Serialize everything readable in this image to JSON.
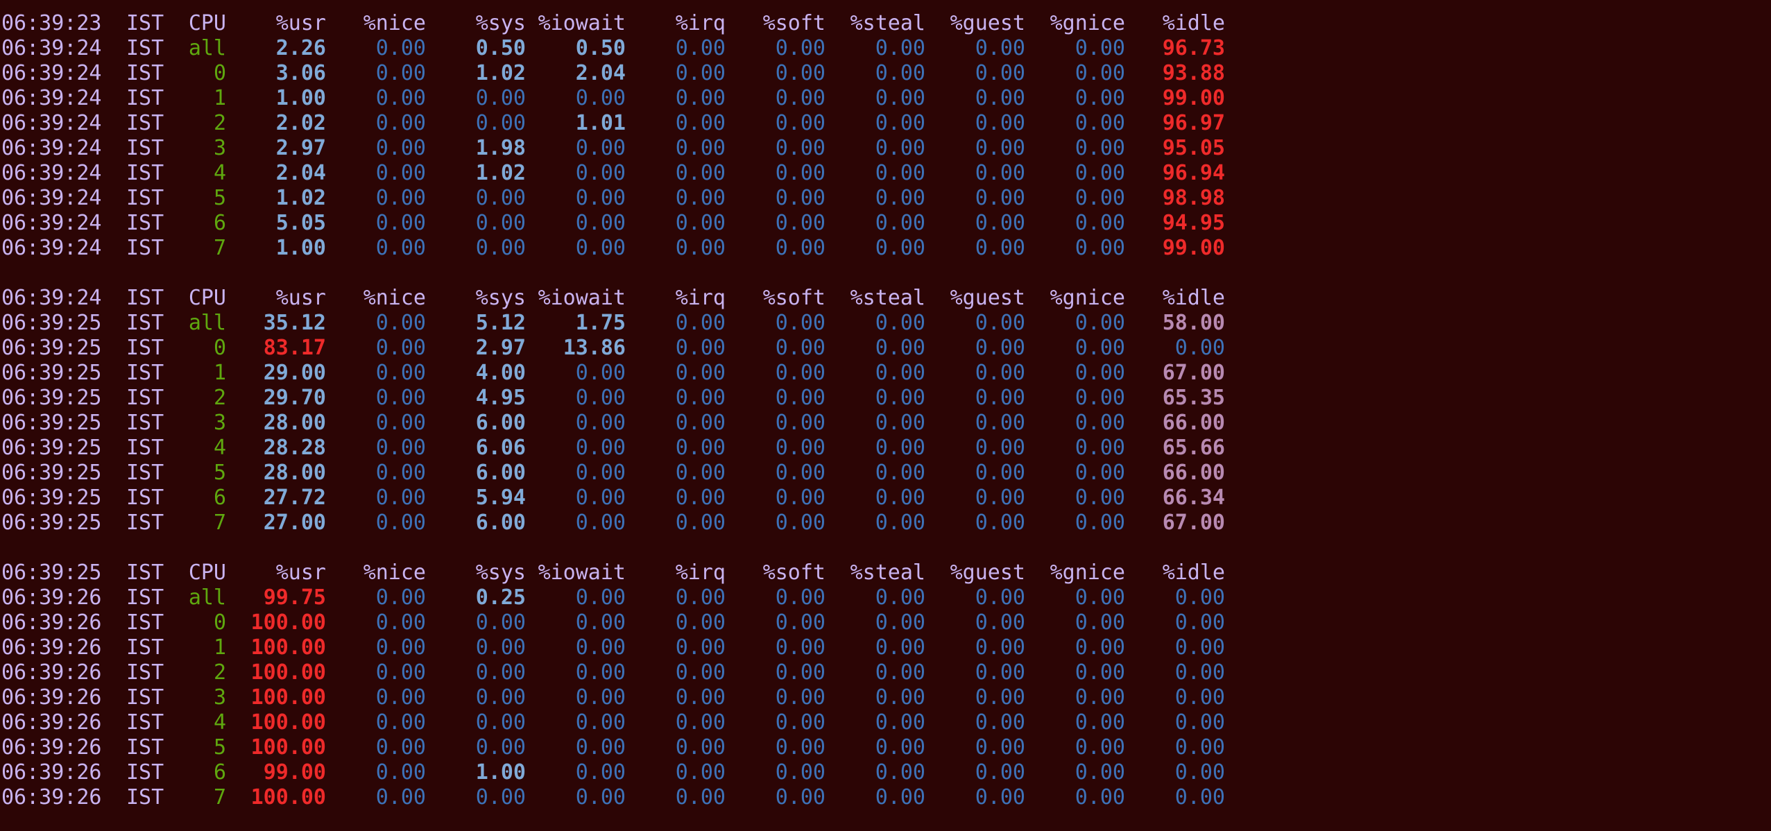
{
  "terminal": {
    "colors": {
      "background": "#2c0505",
      "label": "#c9b3f0",
      "cpu_id": "#5fa80f",
      "zero_value": "#3d72b8",
      "normal_value": "#80aad8",
      "medium_value": "#b88ab2",
      "high_value": "#ef2a2a"
    },
    "columns": [
      "CPU",
      "%usr",
      "%nice",
      "%sys",
      "%iowait",
      "%irq",
      "%soft",
      "%steal",
      "%guest",
      "%gnice",
      "%idle"
    ],
    "blocks": [
      {
        "header_time": "06:39:23",
        "header_tz": "IST",
        "rows": [
          {
            "time": "06:39:24",
            "tz": "IST",
            "cpu": "all",
            "values": [
              "2.26",
              "0.00",
              "0.50",
              "0.50",
              "0.00",
              "0.00",
              "0.00",
              "0.00",
              "0.00",
              "96.73"
            ]
          },
          {
            "time": "06:39:24",
            "tz": "IST",
            "cpu": "0",
            "values": [
              "3.06",
              "0.00",
              "1.02",
              "2.04",
              "0.00",
              "0.00",
              "0.00",
              "0.00",
              "0.00",
              "93.88"
            ]
          },
          {
            "time": "06:39:24",
            "tz": "IST",
            "cpu": "1",
            "values": [
              "1.00",
              "0.00",
              "0.00",
              "0.00",
              "0.00",
              "0.00",
              "0.00",
              "0.00",
              "0.00",
              "99.00"
            ]
          },
          {
            "time": "06:39:24",
            "tz": "IST",
            "cpu": "2",
            "values": [
              "2.02",
              "0.00",
              "0.00",
              "1.01",
              "0.00",
              "0.00",
              "0.00",
              "0.00",
              "0.00",
              "96.97"
            ]
          },
          {
            "time": "06:39:24",
            "tz": "IST",
            "cpu": "3",
            "values": [
              "2.97",
              "0.00",
              "1.98",
              "0.00",
              "0.00",
              "0.00",
              "0.00",
              "0.00",
              "0.00",
              "95.05"
            ]
          },
          {
            "time": "06:39:24",
            "tz": "IST",
            "cpu": "4",
            "values": [
              "2.04",
              "0.00",
              "1.02",
              "0.00",
              "0.00",
              "0.00",
              "0.00",
              "0.00",
              "0.00",
              "96.94"
            ]
          },
          {
            "time": "06:39:24",
            "tz": "IST",
            "cpu": "5",
            "values": [
              "1.02",
              "0.00",
              "0.00",
              "0.00",
              "0.00",
              "0.00",
              "0.00",
              "0.00",
              "0.00",
              "98.98"
            ]
          },
          {
            "time": "06:39:24",
            "tz": "IST",
            "cpu": "6",
            "values": [
              "5.05",
              "0.00",
              "0.00",
              "0.00",
              "0.00",
              "0.00",
              "0.00",
              "0.00",
              "0.00",
              "94.95"
            ]
          },
          {
            "time": "06:39:24",
            "tz": "IST",
            "cpu": "7",
            "values": [
              "1.00",
              "0.00",
              "0.00",
              "0.00",
              "0.00",
              "0.00",
              "0.00",
              "0.00",
              "0.00",
              "99.00"
            ]
          }
        ]
      },
      {
        "header_time": "06:39:24",
        "header_tz": "IST",
        "rows": [
          {
            "time": "06:39:25",
            "tz": "IST",
            "cpu": "all",
            "values": [
              "35.12",
              "0.00",
              "5.12",
              "1.75",
              "0.00",
              "0.00",
              "0.00",
              "0.00",
              "0.00",
              "58.00"
            ]
          },
          {
            "time": "06:39:25",
            "tz": "IST",
            "cpu": "0",
            "values": [
              "83.17",
              "0.00",
              "2.97",
              "13.86",
              "0.00",
              "0.00",
              "0.00",
              "0.00",
              "0.00",
              "0.00"
            ]
          },
          {
            "time": "06:39:25",
            "tz": "IST",
            "cpu": "1",
            "values": [
              "29.00",
              "0.00",
              "4.00",
              "0.00",
              "0.00",
              "0.00",
              "0.00",
              "0.00",
              "0.00",
              "67.00"
            ]
          },
          {
            "time": "06:39:25",
            "tz": "IST",
            "cpu": "2",
            "values": [
              "29.70",
              "0.00",
              "4.95",
              "0.00",
              "0.00",
              "0.00",
              "0.00",
              "0.00",
              "0.00",
              "65.35"
            ]
          },
          {
            "time": "06:39:25",
            "tz": "IST",
            "cpu": "3",
            "values": [
              "28.00",
              "0.00",
              "6.00",
              "0.00",
              "0.00",
              "0.00",
              "0.00",
              "0.00",
              "0.00",
              "66.00"
            ]
          },
          {
            "time": "06:39:25",
            "tz": "IST",
            "cpu": "4",
            "values": [
              "28.28",
              "0.00",
              "6.06",
              "0.00",
              "0.00",
              "0.00",
              "0.00",
              "0.00",
              "0.00",
              "65.66"
            ]
          },
          {
            "time": "06:39:25",
            "tz": "IST",
            "cpu": "5",
            "values": [
              "28.00",
              "0.00",
              "6.00",
              "0.00",
              "0.00",
              "0.00",
              "0.00",
              "0.00",
              "0.00",
              "66.00"
            ]
          },
          {
            "time": "06:39:25",
            "tz": "IST",
            "cpu": "6",
            "values": [
              "27.72",
              "0.00",
              "5.94",
              "0.00",
              "0.00",
              "0.00",
              "0.00",
              "0.00",
              "0.00",
              "66.34"
            ]
          },
          {
            "time": "06:39:25",
            "tz": "IST",
            "cpu": "7",
            "values": [
              "27.00",
              "0.00",
              "6.00",
              "0.00",
              "0.00",
              "0.00",
              "0.00",
              "0.00",
              "0.00",
              "67.00"
            ]
          }
        ]
      },
      {
        "header_time": "06:39:25",
        "header_tz": "IST",
        "rows": [
          {
            "time": "06:39:26",
            "tz": "IST",
            "cpu": "all",
            "values": [
              "99.75",
              "0.00",
              "0.25",
              "0.00",
              "0.00",
              "0.00",
              "0.00",
              "0.00",
              "0.00",
              "0.00"
            ]
          },
          {
            "time": "06:39:26",
            "tz": "IST",
            "cpu": "0",
            "values": [
              "100.00",
              "0.00",
              "0.00",
              "0.00",
              "0.00",
              "0.00",
              "0.00",
              "0.00",
              "0.00",
              "0.00"
            ]
          },
          {
            "time": "06:39:26",
            "tz": "IST",
            "cpu": "1",
            "values": [
              "100.00",
              "0.00",
              "0.00",
              "0.00",
              "0.00",
              "0.00",
              "0.00",
              "0.00",
              "0.00",
              "0.00"
            ]
          },
          {
            "time": "06:39:26",
            "tz": "IST",
            "cpu": "2",
            "values": [
              "100.00",
              "0.00",
              "0.00",
              "0.00",
              "0.00",
              "0.00",
              "0.00",
              "0.00",
              "0.00",
              "0.00"
            ]
          },
          {
            "time": "06:39:26",
            "tz": "IST",
            "cpu": "3",
            "values": [
              "100.00",
              "0.00",
              "0.00",
              "0.00",
              "0.00",
              "0.00",
              "0.00",
              "0.00",
              "0.00",
              "0.00"
            ]
          },
          {
            "time": "06:39:26",
            "tz": "IST",
            "cpu": "4",
            "values": [
              "100.00",
              "0.00",
              "0.00",
              "0.00",
              "0.00",
              "0.00",
              "0.00",
              "0.00",
              "0.00",
              "0.00"
            ]
          },
          {
            "time": "06:39:26",
            "tz": "IST",
            "cpu": "5",
            "values": [
              "100.00",
              "0.00",
              "0.00",
              "0.00",
              "0.00",
              "0.00",
              "0.00",
              "0.00",
              "0.00",
              "0.00"
            ]
          },
          {
            "time": "06:39:26",
            "tz": "IST",
            "cpu": "6",
            "values": [
              "99.00",
              "0.00",
              "1.00",
              "0.00",
              "0.00",
              "0.00",
              "0.00",
              "0.00",
              "0.00",
              "0.00"
            ]
          },
          {
            "time": "06:39:26",
            "tz": "IST",
            "cpu": "7",
            "values": [
              "100.00",
              "0.00",
              "0.00",
              "0.00",
              "0.00",
              "0.00",
              "0.00",
              "0.00",
              "0.00",
              "0.00"
            ]
          }
        ]
      }
    ]
  }
}
